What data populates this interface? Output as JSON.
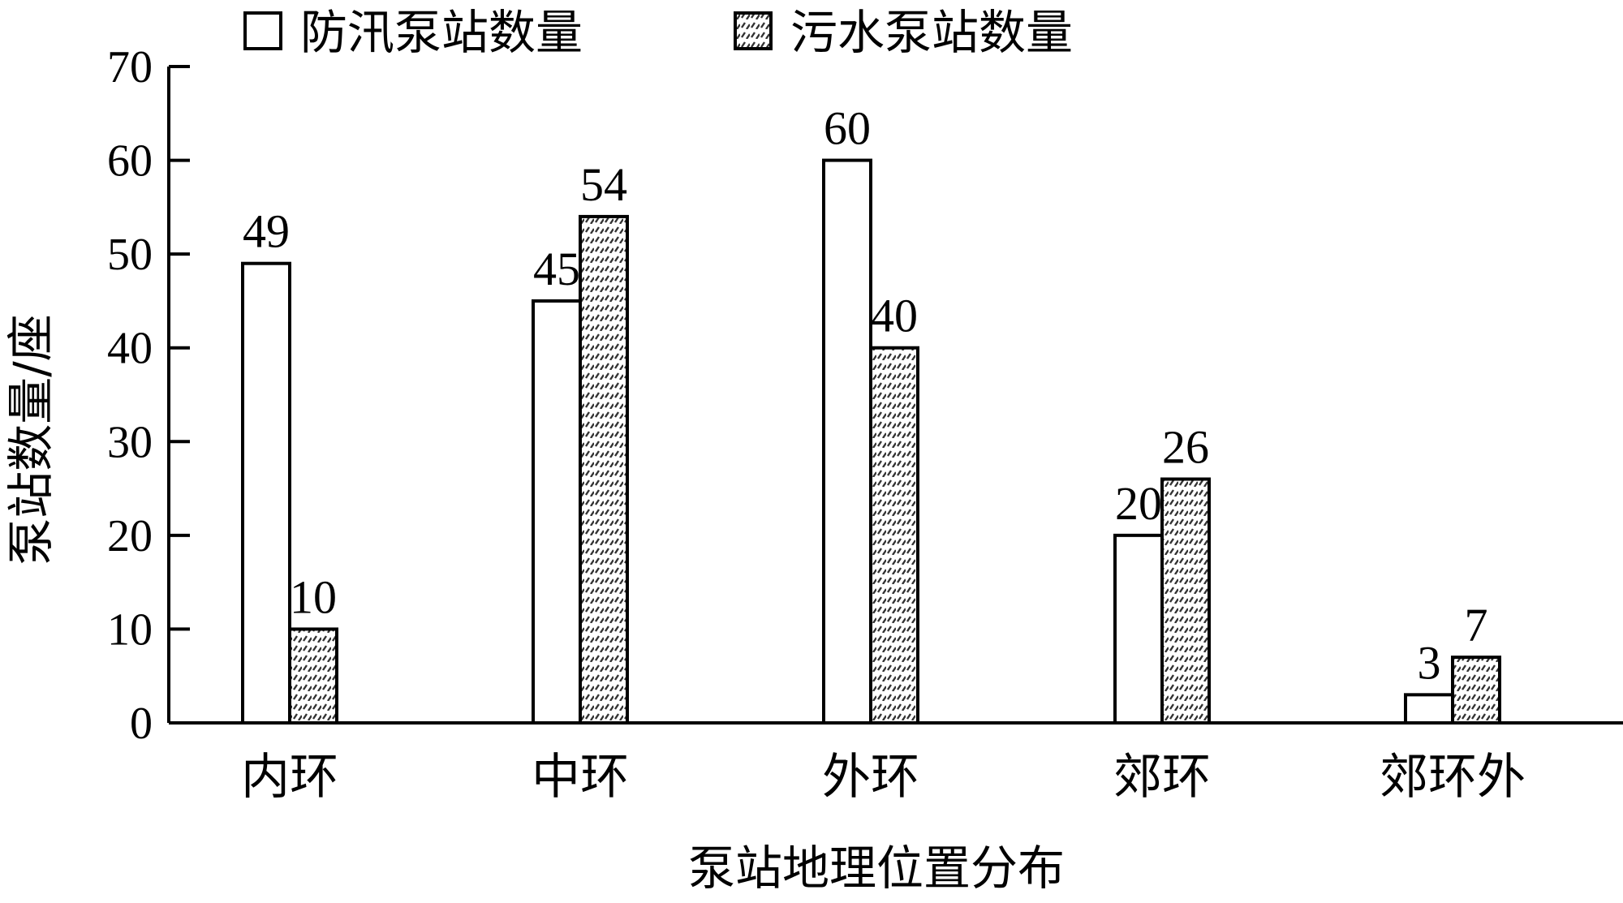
{
  "chart_data": {
    "type": "bar",
    "categories": [
      "内环",
      "中环",
      "外环",
      "郊环",
      "郊环外"
    ],
    "series": [
      {
        "name": "防汛泵站数量",
        "values": [
          49,
          45,
          60,
          20,
          3
        ],
        "pattern": "plain"
      },
      {
        "name": "污水泵站数量",
        "values": [
          10,
          54,
          40,
          26,
          7
        ],
        "pattern": "dotted"
      }
    ],
    "title": "",
    "xlabel": "泵站地理位置分布",
    "ylabel": "泵站数量/座",
    "ylim": [
      0,
      70
    ],
    "yticks": [
      0,
      10,
      20,
      30,
      40,
      50,
      60,
      70
    ],
    "grid": false,
    "legend": "top",
    "colors": {
      "fill": "#ffffff",
      "stroke": "#000000",
      "dots": "#333333"
    }
  }
}
